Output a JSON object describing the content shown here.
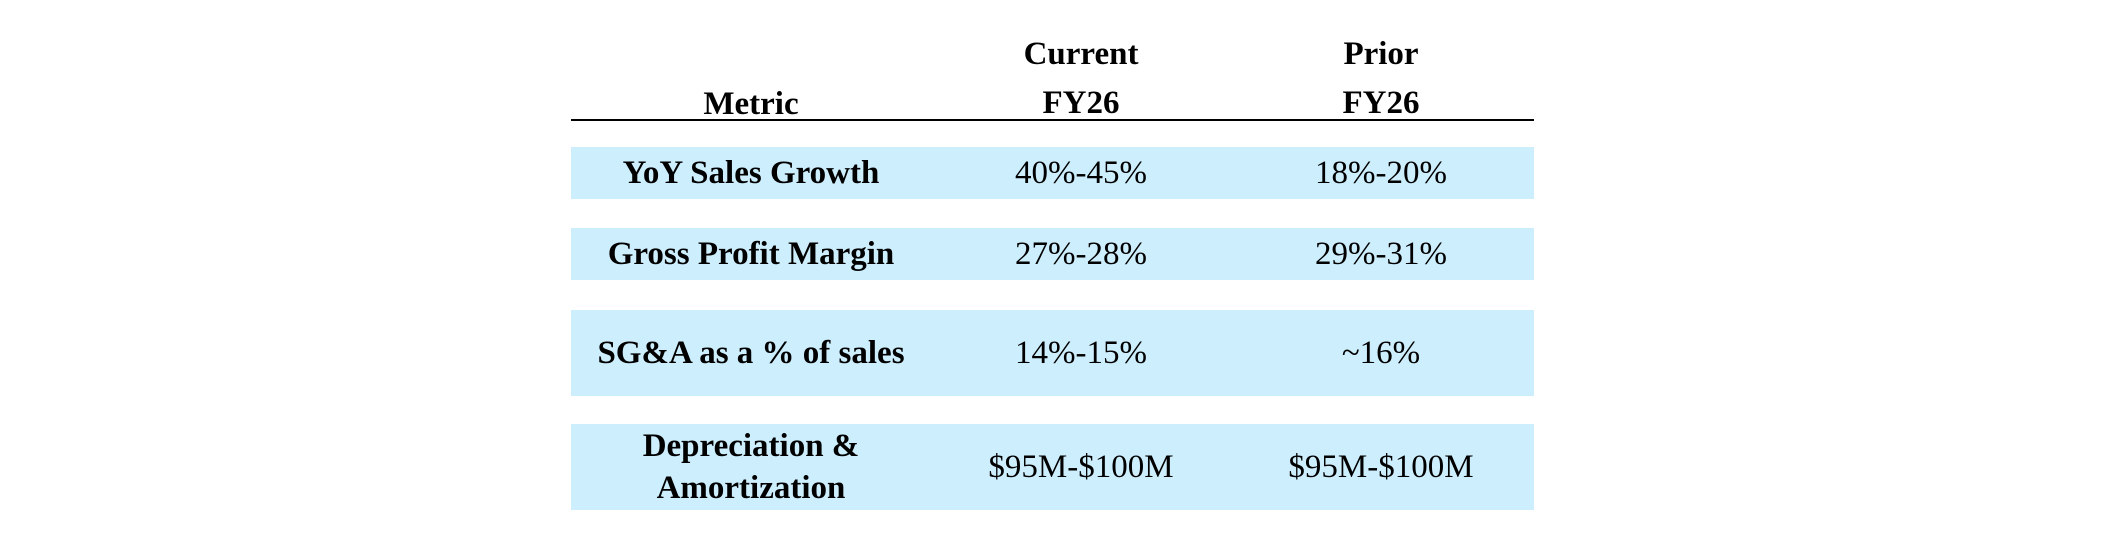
{
  "table": {
    "headers": {
      "metric": "Metric",
      "current": [
        "Current",
        "FY26"
      ],
      "prior": [
        "Prior",
        "FY26"
      ]
    },
    "rows": [
      {
        "metric": [
          "YoY Sales Growth"
        ],
        "current": "40%-45%",
        "prior": "18%-20%"
      },
      {
        "metric": [
          "Gross Profit Margin"
        ],
        "current": "27%-28%",
        "prior": "29%-31%"
      },
      {
        "metric": [
          "SG&A as a % of sales"
        ],
        "current": "14%-15%",
        "prior": "~16%"
      },
      {
        "metric": [
          "Depreciation &",
          "Amortization"
        ],
        "current": "$95M-$100M",
        "prior": "$95M-$100M"
      }
    ]
  },
  "colors": {
    "row_fill": "#cdeefd",
    "rule": "#000000",
    "text": "#000000"
  }
}
